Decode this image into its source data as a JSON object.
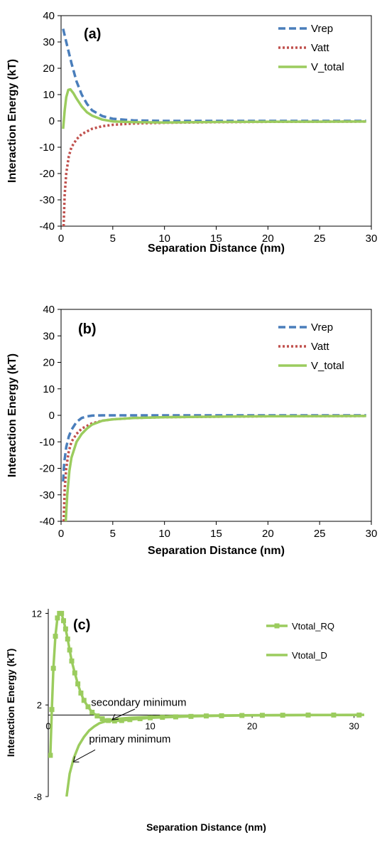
{
  "colors": {
    "rep": "#4a7ebb",
    "att": "#c0504d",
    "total": "#9bcc5e",
    "axis": "#000000"
  },
  "chart_data": [
    {
      "type": "line",
      "panel_label": "(a)",
      "xlabel": "Separation Distance (nm)",
      "ylabel": "Interaction Energy (kT)",
      "xlim": [
        0,
        30
      ],
      "ylim": [
        -40,
        40
      ],
      "xticks": [
        "0",
        "5",
        "10",
        "15",
        "20",
        "25",
        "30"
      ],
      "yticks": [
        "-40",
        "-30",
        "-20",
        "-10",
        "0",
        "10",
        "20",
        "30",
        "40"
      ],
      "legend_position": "top-right",
      "series": [
        {
          "name": "Vrep",
          "style": "dashed",
          "color": "#4a7ebb",
          "x": [
            0.2,
            0.5,
            1,
            1.5,
            2,
            2.5,
            3,
            4,
            5,
            7,
            10,
            15,
            20,
            25,
            29.5
          ],
          "y": [
            35,
            30,
            22,
            15,
            10,
            6.5,
            4,
            1.8,
            0.8,
            0.2,
            0,
            0,
            0,
            0,
            0
          ]
        },
        {
          "name": "Vatt",
          "style": "dotted",
          "color": "#c0504d",
          "x": [
            0.25,
            0.35,
            0.5,
            0.75,
            1,
            1.5,
            2,
            3,
            4,
            5,
            7,
            10,
            15,
            20,
            25,
            29.5
          ],
          "y": [
            -40,
            -28,
            -20,
            -13.5,
            -10,
            -7,
            -5,
            -3,
            -2,
            -1.5,
            -1,
            -0.7,
            -0.5,
            -0.35,
            -0.3,
            -0.25
          ]
        },
        {
          "name": "V_total",
          "style": "solid",
          "color": "#9bcc5e",
          "x": [
            0.2,
            0.35,
            0.5,
            0.7,
            0.9,
            1.2,
            1.5,
            2,
            2.5,
            3,
            4,
            5,
            7,
            10,
            15,
            20,
            25,
            29.5
          ],
          "y": [
            -3,
            4,
            9,
            11.8,
            12,
            10.5,
            8.5,
            5.5,
            3.3,
            2,
            0.5,
            -0.2,
            -0.5,
            -0.6,
            -0.4,
            -0.3,
            -0.3,
            -0.25
          ]
        }
      ]
    },
    {
      "type": "line",
      "panel_label": "(b)",
      "xlabel": "Separation Distance (nm)",
      "ylabel": "Interaction Energy (kT)",
      "xlim": [
        0,
        30
      ],
      "ylim": [
        -40,
        40
      ],
      "xticks": [
        "0",
        "5",
        "10",
        "15",
        "20",
        "25",
        "30"
      ],
      "yticks": [
        "-40",
        "-30",
        "-20",
        "-10",
        "0",
        "10",
        "20",
        "30",
        "40"
      ],
      "legend_position": "top-right",
      "series": [
        {
          "name": "Vrep",
          "style": "dashed",
          "color": "#4a7ebb",
          "x": [
            0.2,
            0.3,
            0.5,
            0.75,
            1,
            1.5,
            2,
            2.5,
            3,
            4,
            5,
            7,
            10,
            15,
            20,
            25,
            29.5
          ],
          "y": [
            -25,
            -18,
            -12,
            -8,
            -5.5,
            -2.5,
            -1,
            -0.4,
            -0.1,
            0,
            0,
            0,
            0,
            0,
            0,
            0,
            0
          ]
        },
        {
          "name": "Vatt",
          "style": "dotted",
          "color": "#c0504d",
          "x": [
            0.25,
            0.35,
            0.5,
            0.75,
            1,
            1.5,
            2,
            3,
            4,
            5,
            7,
            10,
            15,
            20,
            25,
            29.5
          ],
          "y": [
            -40,
            -28,
            -20,
            -13.5,
            -10,
            -7,
            -5,
            -3,
            -2,
            -1.5,
            -1,
            -0.7,
            -0.5,
            -0.35,
            -0.3,
            -0.25
          ]
        },
        {
          "name": "V_total",
          "style": "solid",
          "color": "#9bcc5e",
          "x": [
            0.45,
            0.6,
            0.8,
            1,
            1.5,
            2,
            2.5,
            3,
            4,
            5,
            7,
            10,
            15,
            20,
            25,
            29.5
          ],
          "y": [
            -40,
            -30,
            -21,
            -16,
            -10,
            -7,
            -5,
            -3.5,
            -2,
            -1.5,
            -1,
            -0.7,
            -0.5,
            -0.35,
            -0.3,
            -0.25
          ]
        }
      ]
    },
    {
      "type": "line",
      "panel_label": "(c)",
      "xlabel": "Separation Distance (nm)",
      "ylabel": "Interaction Energy (kT)",
      "xlim": [
        0,
        31
      ],
      "ylim": [
        -8,
        12.5
      ],
      "xticks": [
        "0",
        "10",
        "20",
        "30"
      ],
      "yticks": [
        "-8",
        "2",
        "12"
      ],
      "legend_position": "top-right",
      "annotations": [
        "secondary minimum",
        "primary minimum"
      ],
      "series": [
        {
          "name": "Vtotal_RQ",
          "style": "solid-square-markers",
          "color": "#9bcc5e",
          "x": [
            0.2,
            0.35,
            0.5,
            0.7,
            0.9,
            1.1,
            1.3,
            1.5,
            1.7,
            1.9,
            2.1,
            2.3,
            2.6,
            2.9,
            3.2,
            3.5,
            3.9,
            4.3,
            4.8,
            5.3,
            5.9,
            6.5,
            7.2,
            8,
            9,
            10,
            11.2,
            12.5,
            14,
            15.5,
            17,
            19,
            21,
            23,
            25.5,
            28,
            30.5
          ],
          "y": [
            -3.5,
            1.5,
            6,
            9.5,
            11.5,
            12,
            12,
            11.2,
            10.3,
            9.2,
            8,
            6.8,
            5.5,
            4.3,
            3.3,
            2.5,
            1.8,
            1.2,
            0.8,
            0.5,
            0.3,
            0.25,
            0.3,
            0.4,
            0.5,
            0.6,
            0.65,
            0.7,
            0.75,
            0.8,
            0.82,
            0.85,
            0.87,
            0.88,
            0.9,
            0.9,
            0.9
          ]
        },
        {
          "name": "Vtotal_D",
          "style": "solid",
          "color": "#9bcc5e",
          "x": [
            1.8,
            2.1,
            2.5,
            3,
            3.5,
            4,
            4.5,
            5,
            6,
            7,
            8,
            10,
            12,
            15,
            20,
            25,
            31
          ],
          "y": [
            -8,
            -5.5,
            -3.8,
            -2.4,
            -1.5,
            -0.8,
            -0.35,
            0,
            0.35,
            0.5,
            0.6,
            0.7,
            0.78,
            0.83,
            0.88,
            0.9,
            0.92
          ]
        }
      ]
    }
  ]
}
